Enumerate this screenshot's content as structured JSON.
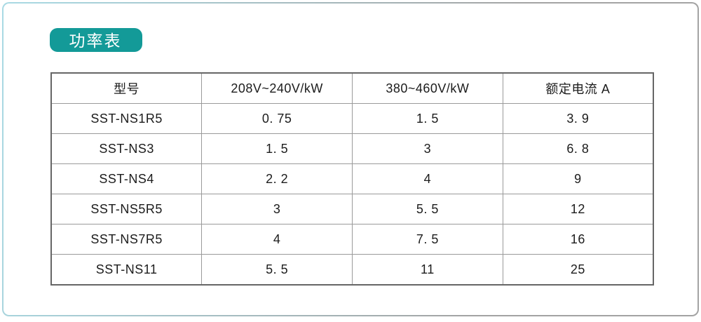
{
  "badge": {
    "label": "功率表"
  },
  "table": {
    "headers": [
      "型号",
      "208V~240V/kW",
      "380~460V/kW",
      "额定电流 A"
    ],
    "rows": [
      [
        "SST-NS1R5",
        "0. 75",
        "1. 5",
        "3. 9"
      ],
      [
        "SST-NS3",
        "1. 5",
        "3",
        "6. 8"
      ],
      [
        "SST-NS4",
        "2. 2",
        "4",
        "9"
      ],
      [
        "SST-NS5R5",
        "3",
        "5. 5",
        "12"
      ],
      [
        "SST-NS7R5",
        "4",
        "7. 5",
        "16"
      ],
      [
        "SST-NS11",
        "5. 5",
        "11",
        "25"
      ]
    ]
  },
  "colors": {
    "badge_bg": "#139a98",
    "badge_text": "#ffffff",
    "table_outer_border": "#666666",
    "table_inner_border": "#9a9a9a",
    "text": "#1c1c1c",
    "frame_gradient_left": "#a9dae4",
    "frame_gradient_right": "#a3a3a3"
  }
}
